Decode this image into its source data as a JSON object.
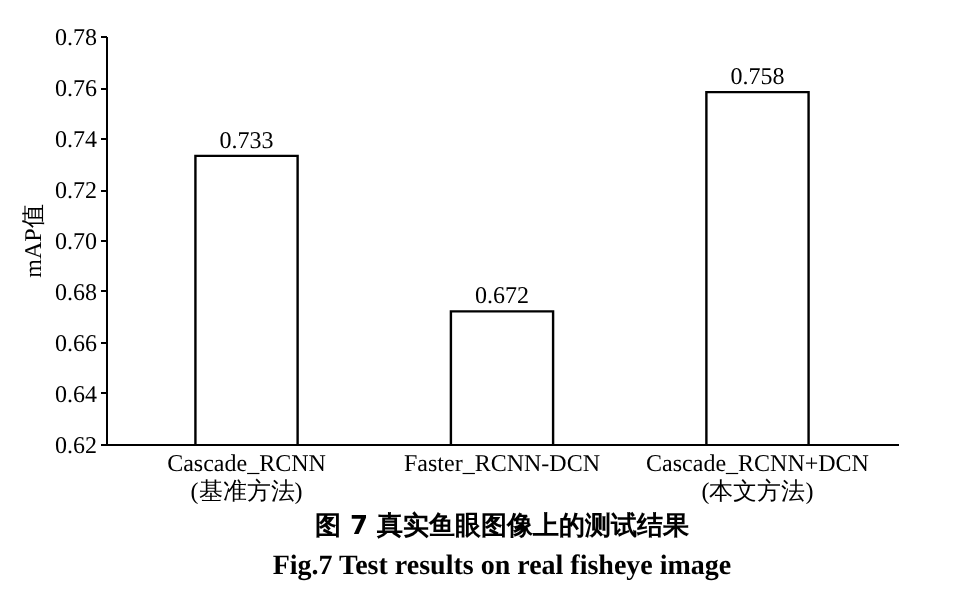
{
  "chart_data": {
    "type": "bar",
    "title": "图 7  真实鱼眼图像上的测试结果",
    "subtitle": "Fig.7  Test results on real fisheye image",
    "ylabel": "mAP值",
    "categories": [
      "Cascade_RCNN\n(基准方法)",
      "Faster_RCNN-DCN",
      "Cascade_RCNN+DCN\n(本文方法)"
    ],
    "values": [
      0.733,
      0.672,
      0.758
    ],
    "color": "#ffffff",
    "ylim": [
      0.62,
      0.78
    ],
    "yticks": [
      0.62,
      0.64,
      0.66,
      0.68,
      {
        "value": 0.7,
        "label": "0.70"
      },
      0.72,
      0.74,
      0.76,
      0.78
    ],
    "data_labels": true,
    "grid": false
  }
}
